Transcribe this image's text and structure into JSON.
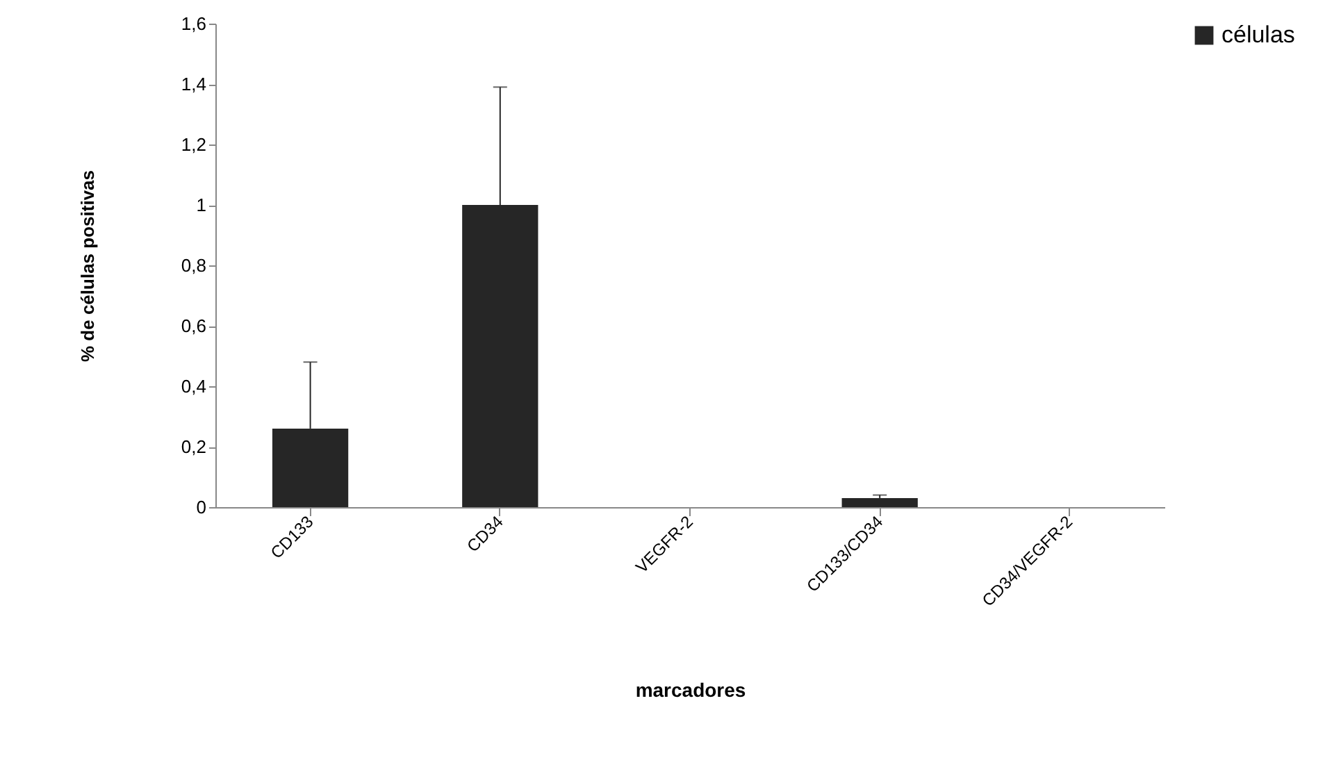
{
  "chart_data": {
    "type": "bar",
    "xlabel": "marcadores",
    "ylabel": "% de células positivas",
    "categories": [
      "CD133",
      "CD34",
      "VEGFR-2",
      "CD133/CD34",
      "CD34/VEGFR-2"
    ],
    "series": [
      {
        "name": "células",
        "color": "#262626",
        "values": [
          0.26,
          1.0,
          0,
          0.03,
          0
        ],
        "errors": [
          [
            0.26,
            0.48
          ],
          [
            1.0,
            1.39
          ],
          null,
          [
            0.03,
            0.04
          ],
          null
        ]
      }
    ],
    "ylim": [
      0,
      1.6
    ],
    "yticks": [
      0,
      {
        "value": 0.2,
        "label": "0,2"
      },
      {
        "value": 0.4,
        "label": "0,4"
      },
      {
        "value": 0.6,
        "label": "0,6"
      },
      {
        "value": 0.8,
        "label": "0,8"
      },
      1,
      {
        "value": 1.2,
        "label": "1,2"
      },
      {
        "value": 1.4,
        "label": "1,4"
      },
      {
        "value": 1.6,
        "label": "1,6"
      }
    ],
    "grid": false,
    "legend": "right"
  }
}
